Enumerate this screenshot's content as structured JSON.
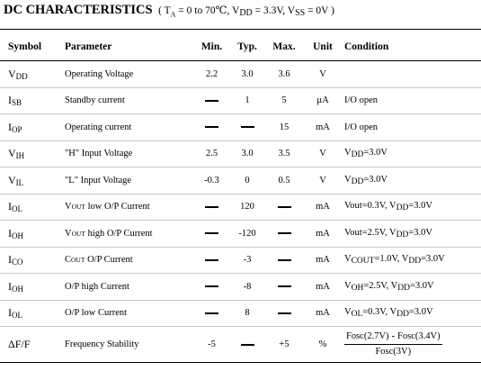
{
  "title": {
    "main": "DC CHARACTERISTICS",
    "paren_open": "(",
    "ta_label": "T",
    "ta_sub": "A",
    "ta_value": "= 0 to 70℃,",
    "vdd_label": "V",
    "vdd_sub": "DD",
    "vdd_value": "= 3.3V,",
    "vss_label": "V",
    "vss_sub": "SS",
    "vss_value": "= 0V",
    "paren_close": ")"
  },
  "table": {
    "headers": {
      "symbol": "Symbol",
      "parameter": "Parameter",
      "min": "Min.",
      "typ": "Typ.",
      "max": "Max.",
      "unit": "Unit",
      "condition": "Condition"
    },
    "rows": [
      {
        "sym": "V",
        "sym_sub": "DD",
        "param": "Operating Voltage",
        "min": "2.2",
        "typ": "3.0",
        "max": "3.6",
        "unit": "V",
        "cond": ""
      },
      {
        "sym": "I",
        "sym_sub": "SB",
        "param": "Standby current",
        "min": "—",
        "typ": "1",
        "max": "5",
        "unit": "µA",
        "cond": "I/O open"
      },
      {
        "sym": "I",
        "sym_sub": "OP",
        "param": "Operating current",
        "min": "—",
        "typ": "—",
        "max": "15",
        "unit": "mA",
        "cond": "I/O open"
      },
      {
        "sym": "V",
        "sym_sub": "IH",
        "param": "\"H\" Input Voltage",
        "min": "2.5",
        "typ": "3.0",
        "max": "3.5",
        "unit": "V",
        "cond_a": "V",
        "cond_a_sub": "DD",
        "cond_a_val": "=3.0V"
      },
      {
        "sym": "V",
        "sym_sub": "IL",
        "param": "\"L\" Input Voltage",
        "min": "-0.3",
        "typ": "0",
        "max": "0.5",
        "unit": "V",
        "cond_a": "V",
        "cond_a_sub": "DD",
        "cond_a_val": "=3.0V"
      },
      {
        "sym": "I",
        "sym_sub": "OL",
        "param_a": "V",
        "param_a_sub": "OUT",
        "param_rest": " low O/P Current",
        "min": "—",
        "typ": "120",
        "max": "—",
        "unit": "mA",
        "cond_pre": "Vout=0.3V, ",
        "cond_a": "V",
        "cond_a_sub": "DD",
        "cond_a_val": "=3.0V"
      },
      {
        "sym": "I",
        "sym_sub": "OH",
        "param_a": "V",
        "param_a_sub": "OUT",
        "param_rest": " high O/P Current",
        "min": "—",
        "typ": "-120",
        "max": "—",
        "unit": "mA",
        "cond_pre": "Vout=2.5V, ",
        "cond_a": "V",
        "cond_a_sub": "DD",
        "cond_a_val": "=3.0V"
      },
      {
        "sym": "I",
        "sym_sub": "CO",
        "param_a": "C",
        "param_a_sub": "OUT",
        "param_rest": " O/P Current",
        "min": "—",
        "typ": "-3",
        "max": "—",
        "unit": "mA",
        "cond_a": "V",
        "cond_a_sub": "COUT",
        "cond_a_val": "=1.0V, ",
        "cond_b": "V",
        "cond_b_sub": "DD",
        "cond_b_val": "=3.0V"
      },
      {
        "sym": "I",
        "sym_sub": "OH",
        "param": "O/P high Current",
        "min": "—",
        "typ": "-8",
        "max": "—",
        "unit": "mA",
        "cond_a": "V",
        "cond_a_sub": "OH",
        "cond_a_val": "=2.5V, ",
        "cond_b": "V",
        "cond_b_sub": "DD",
        "cond_b_val": "=3.0V"
      },
      {
        "sym": "I",
        "sym_sub": "OL",
        "param": "O/P low Current",
        "min": "—",
        "typ": "8",
        "max": "—",
        "unit": "mA",
        "cond_a": "V",
        "cond_a_sub": "OL",
        "cond_a_val": "=0.3V, ",
        "cond_b": "V",
        "cond_b_sub": "DD",
        "cond_b_val": "=3.0V"
      },
      {
        "sym": "ΔF/F",
        "param": "Frequency Stability",
        "min": "-5",
        "typ": "—",
        "max": "+5",
        "unit": "%",
        "cond_num_a": "Fosc(2.7V)",
        "cond_num_dash": "-",
        "cond_num_b": "Fosc(3.4V)",
        "cond_den": "Fosc(3V)"
      }
    ]
  }
}
